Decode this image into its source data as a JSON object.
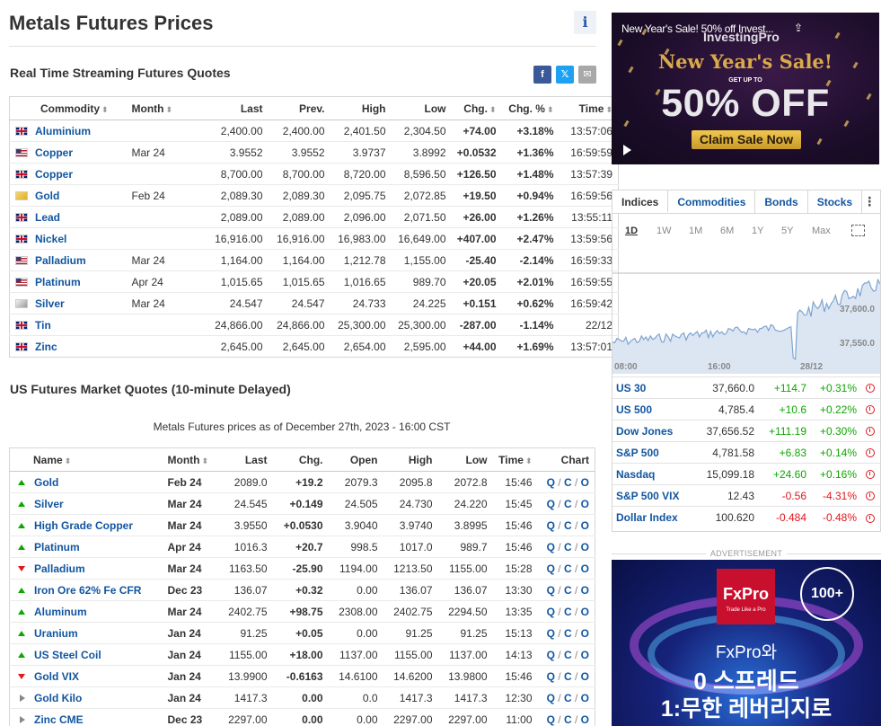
{
  "page": {
    "title": "Metals Futures Prices",
    "info_icon": "i"
  },
  "realtime": {
    "title": "Real Time Streaming Futures Quotes",
    "share": {
      "facebook": "f",
      "twitter": "𝕏",
      "mail": "✉"
    },
    "headers": [
      "Commodity",
      "Month",
      "Last",
      "Prev.",
      "High",
      "Low",
      "Chg.",
      "Chg. %",
      "Time"
    ],
    "sort_glyph": "⬍",
    "rows": [
      {
        "flag": "uk",
        "name": "Aluminium",
        "month": "",
        "last": "2,400.00",
        "prev": "2,400.00",
        "high": "2,401.50",
        "low": "2,304.50",
        "chg": "+74.00",
        "chgp": "+3.18%",
        "time": "13:57:06",
        "dir": "pos"
      },
      {
        "flag": "us",
        "name": "Copper",
        "month": "Mar 24",
        "last": "3.9552",
        "prev": "3.9552",
        "high": "3.9737",
        "low": "3.8992",
        "chg": "+0.0532",
        "chgp": "+1.36%",
        "time": "16:59:59",
        "dir": "pos"
      },
      {
        "flag": "uk",
        "name": "Copper",
        "month": "",
        "last": "8,700.00",
        "prev": "8,700.00",
        "high": "8,720.00",
        "low": "8,596.50",
        "chg": "+126.50",
        "chgp": "+1.48%",
        "time": "13:57:39",
        "dir": "pos"
      },
      {
        "flag": "gold",
        "name": "Gold",
        "month": "Feb 24",
        "last": "2,089.30",
        "prev": "2,089.30",
        "high": "2,095.75",
        "low": "2,072.85",
        "chg": "+19.50",
        "chgp": "+0.94%",
        "time": "16:59:56",
        "dir": "pos"
      },
      {
        "flag": "uk",
        "name": "Lead",
        "month": "",
        "last": "2,089.00",
        "prev": "2,089.00",
        "high": "2,096.00",
        "low": "2,071.50",
        "chg": "+26.00",
        "chgp": "+1.26%",
        "time": "13:55:11",
        "dir": "pos"
      },
      {
        "flag": "uk",
        "name": "Nickel",
        "month": "",
        "last": "16,916.00",
        "prev": "16,916.00",
        "high": "16,983.00",
        "low": "16,649.00",
        "chg": "+407.00",
        "chgp": "+2.47%",
        "time": "13:59:56",
        "dir": "pos"
      },
      {
        "flag": "us",
        "name": "Palladium",
        "month": "Mar 24",
        "last": "1,164.00",
        "prev": "1,164.00",
        "high": "1,212.78",
        "low": "1,155.00",
        "chg": "-25.40",
        "chgp": "-2.14%",
        "time": "16:59:33",
        "dir": "neg"
      },
      {
        "flag": "us",
        "name": "Platinum",
        "month": "Apr 24",
        "last": "1,015.65",
        "prev": "1,015.65",
        "high": "1,016.65",
        "low": "989.70",
        "chg": "+20.05",
        "chgp": "+2.01%",
        "time": "16:59:55",
        "dir": "pos"
      },
      {
        "flag": "silver",
        "name": "Silver",
        "month": "Mar 24",
        "last": "24.547",
        "prev": "24.547",
        "high": "24.733",
        "low": "24.225",
        "chg": "+0.151",
        "chgp": "+0.62%",
        "time": "16:59:42",
        "dir": "pos"
      },
      {
        "flag": "uk",
        "name": "Tin",
        "month": "",
        "last": "24,866.00",
        "prev": "24,866.00",
        "high": "25,300.00",
        "low": "25,300.00",
        "chg": "-287.00",
        "chgp": "-1.14%",
        "time": "22/12",
        "dir": "neu"
      },
      {
        "flag": "uk",
        "name": "Zinc",
        "month": "",
        "last": "2,645.00",
        "prev": "2,645.00",
        "high": "2,654.00",
        "low": "2,595.00",
        "chg": "+44.00",
        "chgp": "+1.69%",
        "time": "13:57:01",
        "dir": "pos"
      }
    ]
  },
  "delayed": {
    "title": "US Futures Market Quotes (10-minute Delayed)",
    "as_of": "Metals Futures prices as of December 27th, 2023 - 16:00 CST",
    "headers": [
      "Name",
      "Month",
      "Last",
      "Chg.",
      "Open",
      "High",
      "Low",
      "Time",
      "Chart"
    ],
    "chart_links": [
      "Q",
      "C",
      "O"
    ],
    "rows": [
      {
        "trend": "up",
        "name": "Gold",
        "month": "Feb 24",
        "last": "2089.0",
        "chg": "+19.2",
        "open": "2079.3",
        "high": "2095.8",
        "low": "2072.8",
        "time": "15:46",
        "dir": "pos"
      },
      {
        "trend": "up",
        "name": "Silver",
        "month": "Mar 24",
        "last": "24.545",
        "chg": "+0.149",
        "open": "24.505",
        "high": "24.730",
        "low": "24.220",
        "time": "15:45",
        "dir": "pos"
      },
      {
        "trend": "up",
        "name": "High Grade Copper",
        "month": "Mar 24",
        "last": "3.9550",
        "chg": "+0.0530",
        "open": "3.9040",
        "high": "3.9740",
        "low": "3.8995",
        "time": "15:46",
        "dir": "pos"
      },
      {
        "trend": "up",
        "name": "Platinum",
        "month": "Apr 24",
        "last": "1016.3",
        "chg": "+20.7",
        "open": "998.5",
        "high": "1017.0",
        "low": "989.7",
        "time": "15:46",
        "dir": "pos"
      },
      {
        "trend": "down",
        "name": "Palladium",
        "month": "Mar 24",
        "last": "1163.50",
        "chg": "-25.90",
        "open": "1194.00",
        "high": "1213.50",
        "low": "1155.00",
        "time": "15:28",
        "dir": "neg"
      },
      {
        "trend": "up",
        "name": "Iron Ore 62% Fe CFR",
        "month": "Dec 23",
        "last": "136.07",
        "chg": "+0.32",
        "open": "0.00",
        "high": "136.07",
        "low": "136.07",
        "time": "13:30",
        "dir": "pos"
      },
      {
        "trend": "up",
        "name": "Aluminum",
        "month": "Mar 24",
        "last": "2402.75",
        "chg": "+98.75",
        "open": "2308.00",
        "high": "2402.75",
        "low": "2294.50",
        "time": "13:35",
        "dir": "pos"
      },
      {
        "trend": "up",
        "name": "Uranium",
        "month": "Jan 24",
        "last": "91.25",
        "chg": "+0.05",
        "open": "0.00",
        "high": "91.25",
        "low": "91.25",
        "time": "15:13",
        "dir": "pos"
      },
      {
        "trend": "up",
        "name": "US Steel Coil",
        "month": "Jan 24",
        "last": "1155.00",
        "chg": "+18.00",
        "open": "1137.00",
        "high": "1155.00",
        "low": "1137.00",
        "time": "14:13",
        "dir": "pos"
      },
      {
        "trend": "down",
        "name": "Gold VIX",
        "month": "Jan 24",
        "last": "13.9900",
        "chg": "-0.6163",
        "open": "14.6100",
        "high": "14.6200",
        "low": "13.9800",
        "time": "15:46",
        "dir": "neg"
      },
      {
        "trend": "flat",
        "name": "Gold Kilo",
        "month": "Jan 24",
        "last": "1417.3",
        "chg": "0.00",
        "open": "0.0",
        "high": "1417.3",
        "low": "1417.3",
        "time": "12:30",
        "dir": "neu"
      },
      {
        "trend": "flat",
        "name": "Zinc CME",
        "month": "Dec 23",
        "last": "2297.00",
        "chg": "0.00",
        "open": "0.00",
        "high": "2297.00",
        "low": "2297.00",
        "time": "11:00",
        "dir": "neu"
      }
    ]
  },
  "promo": {
    "top_text": "New Year's Sale! 50% off Invest...",
    "brand": "InvestingPro",
    "headline": "New Year's Sale!",
    "up_to": "GET UP TO",
    "big": "50% OFF",
    "cta": "Claim Sale Now"
  },
  "markets": {
    "tabs": [
      "Indices",
      "Commodities",
      "Bonds",
      "Stocks"
    ],
    "more": "⋮",
    "periods": [
      "1D",
      "1W",
      "1M",
      "6M",
      "1Y",
      "5Y",
      "Max"
    ],
    "active_period": "1D",
    "spark_x_labels": [
      "08:00",
      "16:00",
      "28/12"
    ],
    "spark_y_labels": [
      "37,600.0",
      "37,550.0"
    ],
    "rows": [
      {
        "name": "US 30",
        "last": "37,660.0",
        "chg": "+114.7",
        "chgp": "+0.31%",
        "dir": "pos"
      },
      {
        "name": "US 500",
        "last": "4,785.4",
        "chg": "+10.6",
        "chgp": "+0.22%",
        "dir": "pos"
      },
      {
        "name": "Dow Jones",
        "last": "37,656.52",
        "chg": "+111.19",
        "chgp": "+0.30%",
        "dir": "pos"
      },
      {
        "name": "S&P 500",
        "last": "4,781.58",
        "chg": "+6.83",
        "chgp": "+0.14%",
        "dir": "pos"
      },
      {
        "name": "Nasdaq",
        "last": "15,099.18",
        "chg": "+24.60",
        "chgp": "+0.16%",
        "dir": "pos"
      },
      {
        "name": "S&P 500 VIX",
        "last": "12.43",
        "chg": "-0.56",
        "chgp": "-4.31%",
        "dir": "neg"
      },
      {
        "name": "Dollar Index",
        "last": "100.620",
        "chg": "-0.484",
        "chgp": "-0.48%",
        "dir": "neg"
      }
    ]
  },
  "advertisement": {
    "label": "ADVERTISEMENT",
    "logo": "FxPro",
    "logo_tag": "Trade Like a Pro",
    "badge": "100+",
    "line1": "FxPro와",
    "line2": "0 스프레드",
    "line3": "1:무한 레버리지로"
  },
  "colors": {
    "positive": "#0ea600",
    "negative": "#e0171d",
    "link": "#1256a0"
  }
}
